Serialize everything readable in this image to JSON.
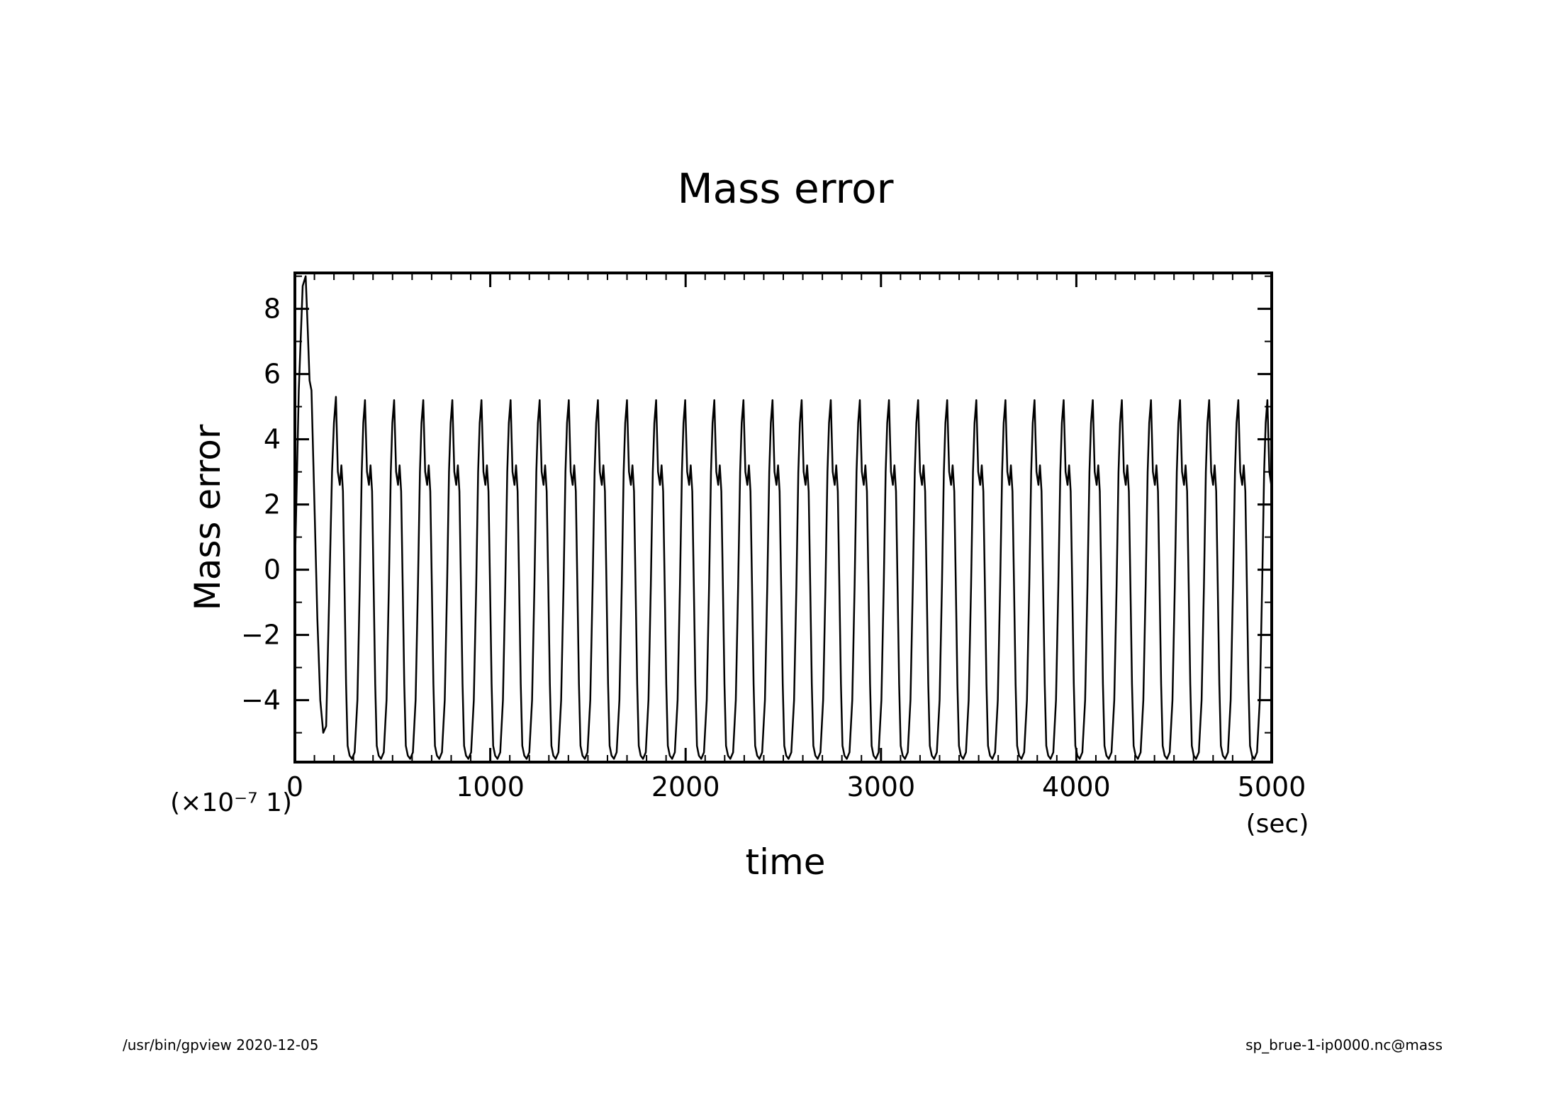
{
  "chart_data": {
    "type": "line",
    "title": "Mass error",
    "xlabel": "time",
    "ylabel": "Mass error",
    "x_unit": "(sec)",
    "y_scale_label": "(×10⁻⁷ 1)",
    "xlim": [
      0,
      5000
    ],
    "ylim": [
      -5.9,
      9.1
    ],
    "xticks": [
      "0",
      "1000",
      "2000",
      "3000",
      "4000",
      "5000"
    ],
    "yticks": [
      "8",
      "6",
      "4",
      "2",
      "0",
      "−2",
      "−4"
    ],
    "grid": false,
    "legend": "none",
    "series": [
      {
        "color": "#000000",
        "period_sec": 149,
        "initial": {
          "x": [
            0,
            20,
            40,
            55,
            65,
            75,
            85,
            100,
            115,
            130,
            145,
            160,
            175,
            190,
            200,
            210
          ],
          "y": [
            0,
            5.5,
            8.7,
            9.0,
            7.5,
            5.8,
            5.5,
            2.0,
            -1.5,
            -4.0,
            -5.0,
            -4.8,
            -1.0,
            3.0,
            4.5,
            5.3
          ]
        },
        "cycle": {
          "x_offset": [
            0,
            10,
            20,
            28,
            36,
            44,
            52,
            60,
            70,
            82,
            96,
            110,
            122,
            132,
            140,
            149
          ],
          "y": [
            5.2,
            3.0,
            2.6,
            3.2,
            2.4,
            -0.5,
            -3.5,
            -5.4,
            -5.7,
            -5.8,
            -5.6,
            -4.0,
            -0.5,
            3.0,
            4.5,
            5.2
          ]
        }
      }
    ]
  },
  "footer": {
    "left": "/usr/bin/gpview   2020-12-05",
    "right": "sp_brue-1-ip0000.nc@mass"
  }
}
